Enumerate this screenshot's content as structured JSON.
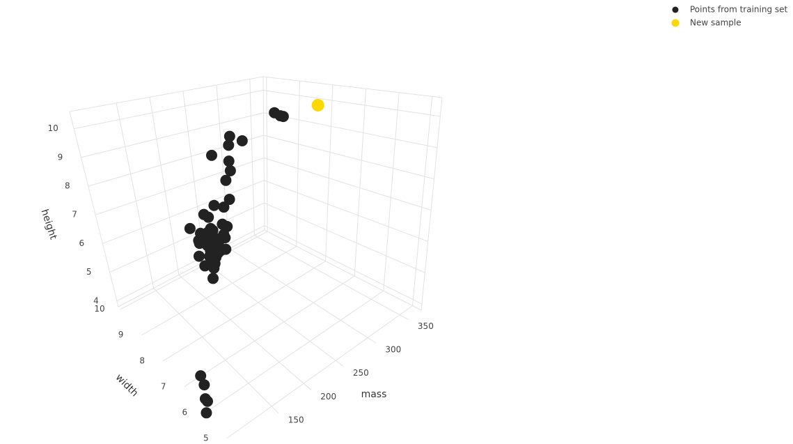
{
  "chart_data": {
    "type": "scatter3d",
    "xlabel": "mass",
    "ylabel": "width",
    "zlabel": "height",
    "xlim": [
      80,
      370
    ],
    "ylim": [
      4.7,
      10.1
    ],
    "zlim": [
      3.8,
      10.6
    ],
    "xticks": [
      150,
      200,
      250,
      300,
      350
    ],
    "yticks": [
      5,
      6,
      7,
      8,
      9,
      10
    ],
    "zticks": [
      4,
      5,
      6,
      7,
      8,
      9,
      10
    ],
    "grid": true,
    "legend": "top-right",
    "series": [
      {
        "name": "Points from training set",
        "color": "#222222",
        "x": [
          192,
          180,
          176,
          178,
          172,
          166,
          172,
          154,
          164,
          152,
          156,
          156,
          168,
          162,
          162,
          160,
          156,
          140,
          170,
          86,
          84,
          80,
          80,
          76,
          342,
          356,
          362,
          204,
          140,
          160,
          158,
          210,
          164,
          190,
          142,
          150,
          160,
          154,
          158,
          144,
          154,
          180,
          154,
          194,
          200,
          186,
          216,
          196,
          174,
          132,
          130,
          116,
          118,
          120,
          116,
          116,
          116,
          152,
          118
        ],
        "y": [
          8.4,
          8.0,
          7.4,
          7.1,
          7.4,
          6.9,
          7.1,
          7.0,
          7.3,
          7.6,
          7.7,
          7.6,
          7.5,
          7.5,
          7.4,
          7.5,
          7.4,
          7.3,
          7.6,
          6.2,
          6.0,
          5.8,
          5.9,
          5.8,
          9.0,
          9.2,
          9.6,
          7.5,
          6.7,
          7.0,
          7.1,
          7.8,
          7.2,
          7.5,
          7.6,
          7.1,
          7.1,
          7.3,
          7.2,
          6.8,
          7.1,
          7.6,
          7.2,
          7.2,
          7.3,
          7.2,
          7.3,
          7.3,
          7.3,
          5.8,
          6.0,
          6.0,
          5.9,
          6.0,
          6.1,
          6.3,
          5.9,
          6.5,
          6.1
        ],
        "z": [
          7.3,
          6.8,
          7.2,
          7.8,
          7.0,
          7.3,
          7.6,
          7.1,
          7.7,
          7.3,
          7.1,
          7.5,
          7.6,
          7.1,
          7.2,
          7.5,
          7.4,
          7.1,
          7.9,
          4.7,
          4.6,
          4.3,
          4.3,
          4.0,
          9.4,
          9.2,
          9.2,
          9.2,
          7.1,
          7.4,
          7.5,
          8.0,
          7.0,
          8.1,
          7.8,
          7.9,
          7.6,
          7.3,
          7.8,
          7.4,
          7.5,
          8.2,
          7.2,
          10.3,
          10.5,
          9.2,
          10.2,
          9.7,
          10.1,
          8.7,
          8.2,
          7.5,
          8.0,
          8.4,
          8.5,
          7.7,
          8.1,
          8.5,
          8.1
        ]
      },
      {
        "name": "New sample",
        "color": "#FFD700",
        "x": [
          350
        ],
        "y": [
          8.0
        ],
        "z": [
          10.0
        ]
      }
    ]
  }
}
